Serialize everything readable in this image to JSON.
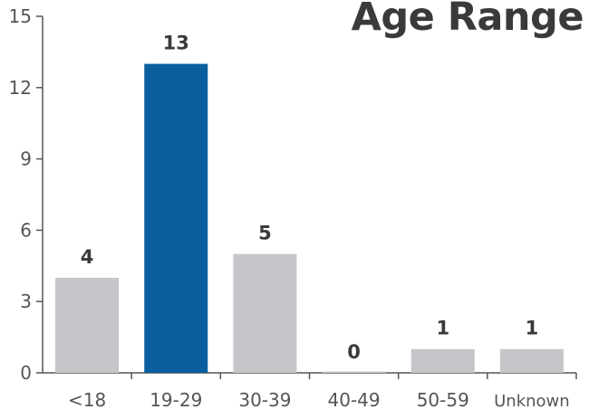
{
  "chart_data": {
    "type": "bar",
    "title": "Age Range",
    "categories": [
      "<18",
      "19-29",
      "30-39",
      "40-49",
      "50-59",
      "Unknown"
    ],
    "values": [
      4,
      13,
      5,
      0,
      1,
      1
    ],
    "data_labels": [
      "4",
      "13",
      "5",
      "0",
      "1",
      "1"
    ],
    "ylim": [
      0,
      15
    ],
    "yticks": [
      0,
      3,
      6,
      9,
      12,
      15
    ],
    "xlabel": "",
    "ylabel": "",
    "grid": false,
    "legend": "none",
    "highlight_index": 1,
    "colors": {
      "bar": "#c5c6c9",
      "highlight": "#0a5e9e",
      "axis": "#555555",
      "text": "#3a3a3a",
      "tick_label": "#555555"
    }
  }
}
